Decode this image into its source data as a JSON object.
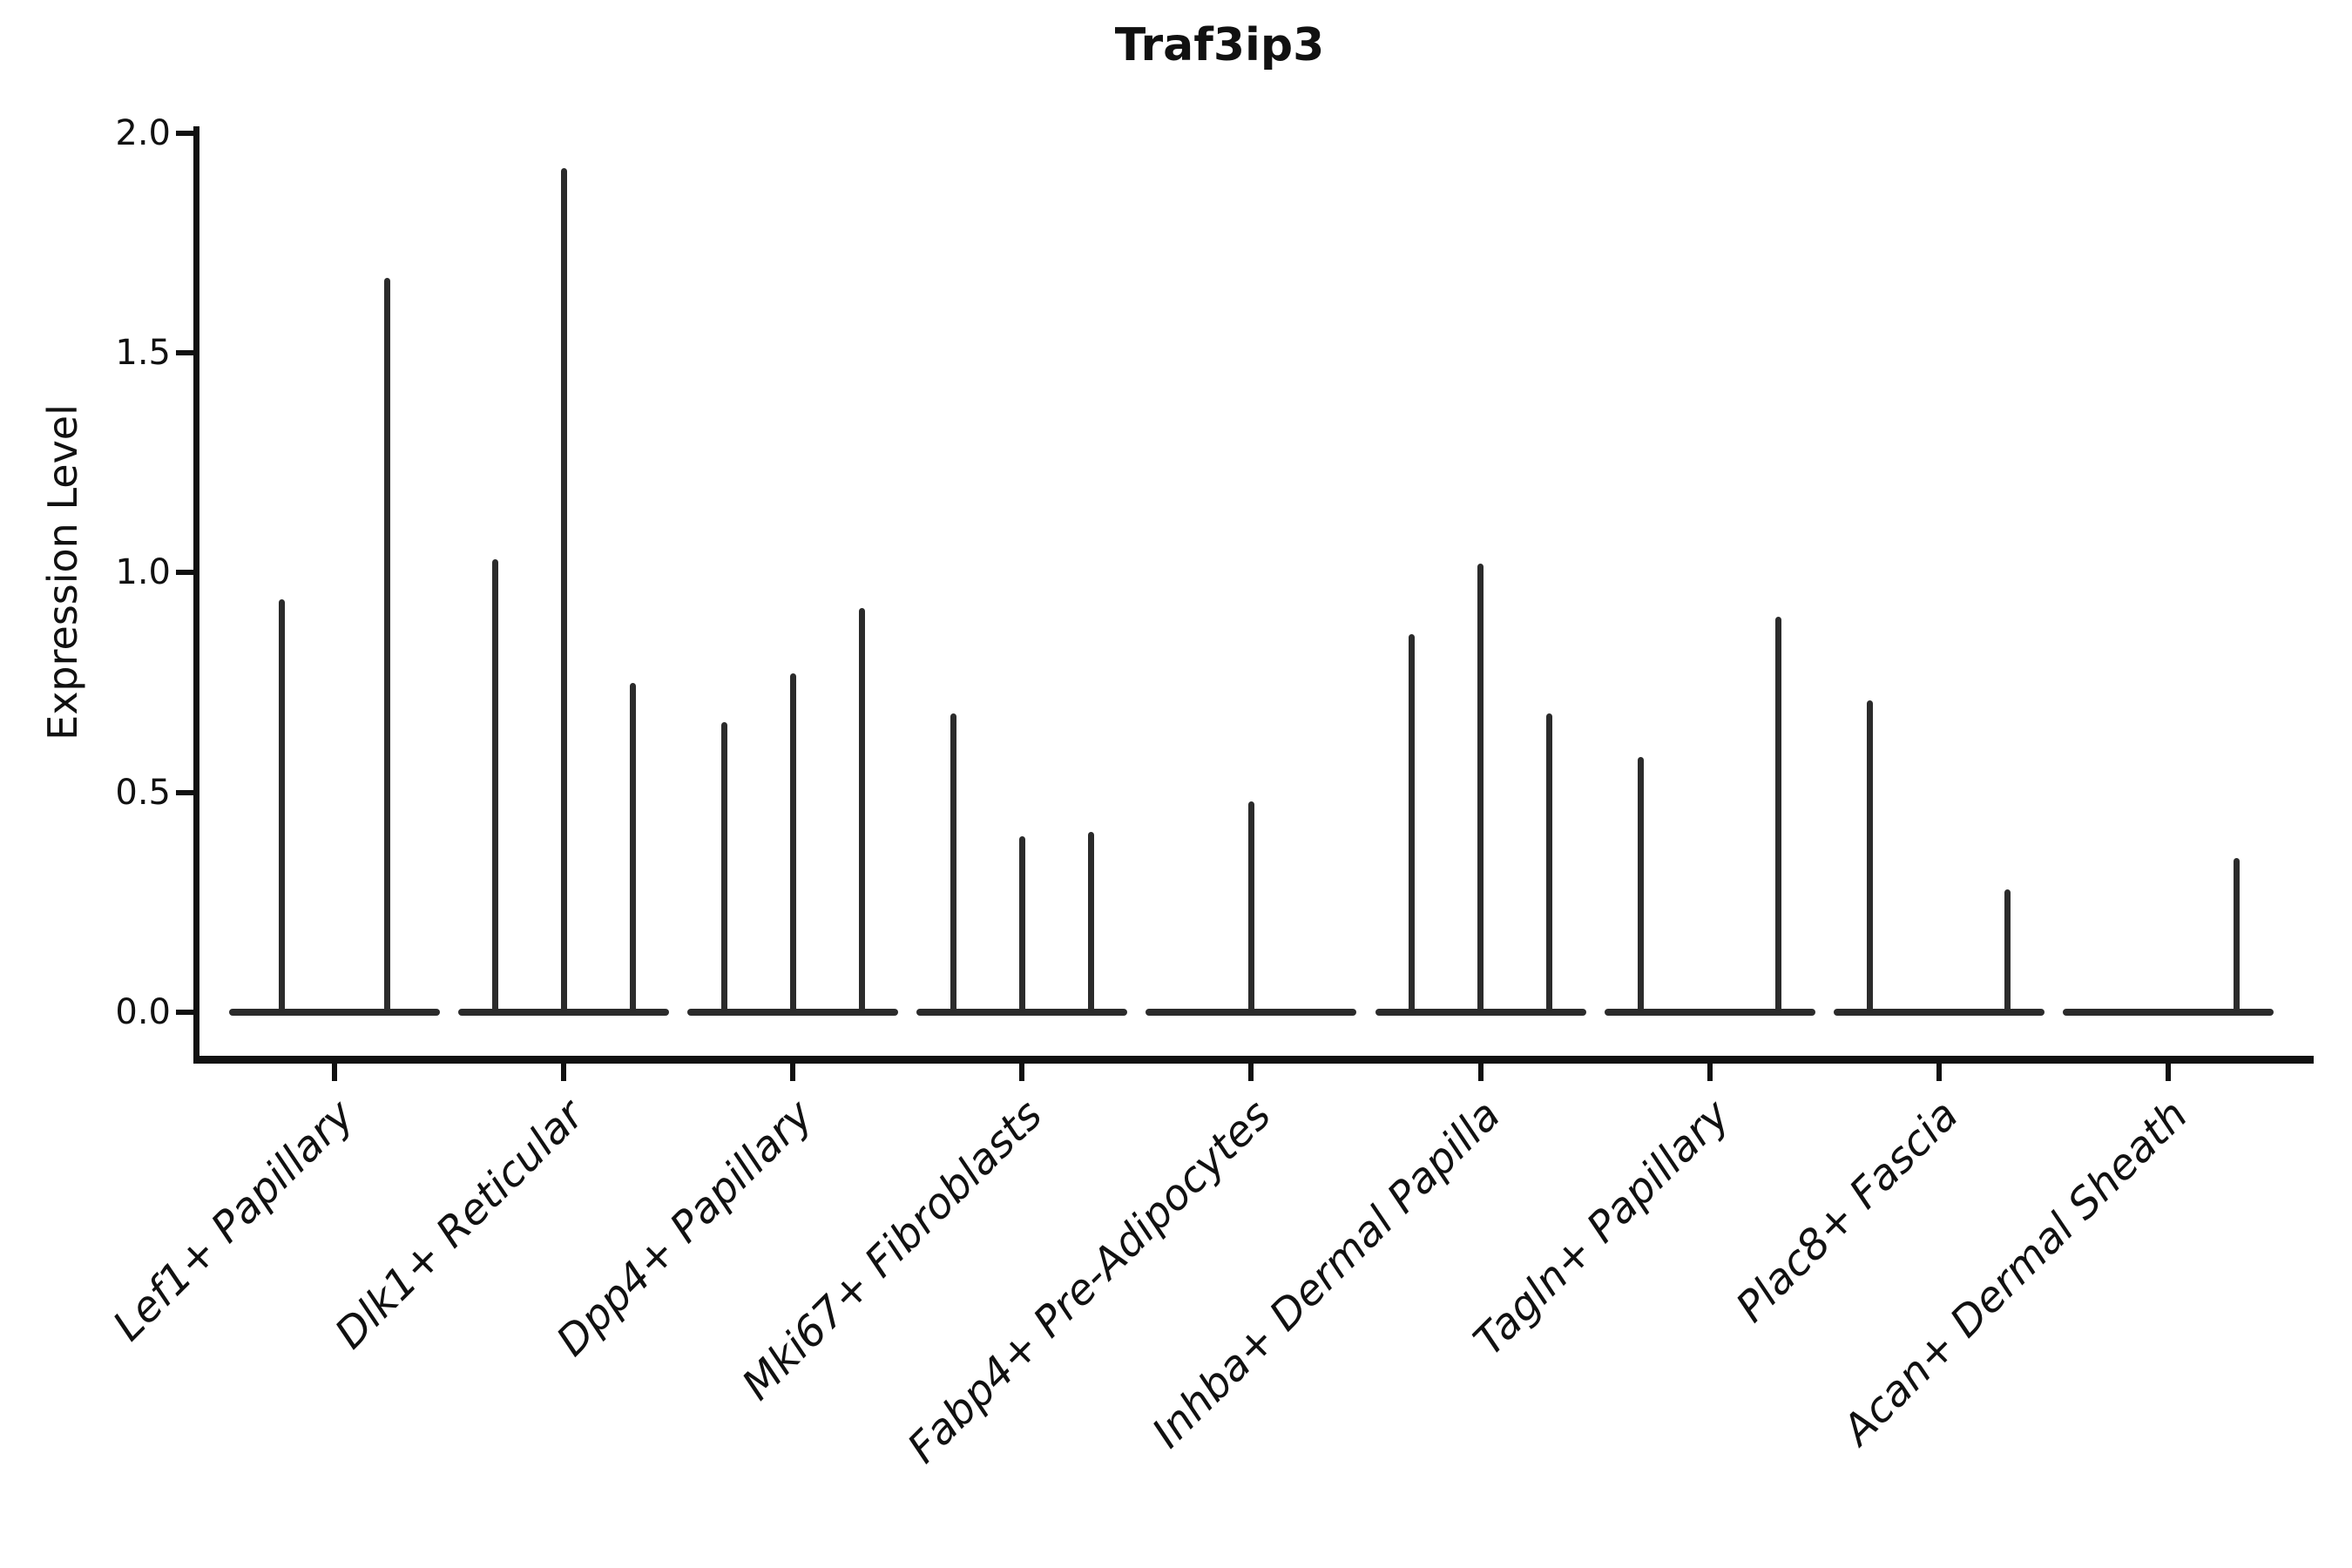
{
  "chart_data": {
    "type": "violin",
    "title": "Traf3ip3",
    "ylabel": "Expression Level",
    "ylim": [
      0.0,
      2.0
    ],
    "yticks": [
      "2.0",
      "1.5",
      "1.0",
      "0.5",
      "0.0"
    ],
    "ytick_values": [
      2.0,
      1.5,
      1.0,
      0.5,
      0.0
    ],
    "grid": false,
    "legend": "none",
    "ink_color": "#111111",
    "violin_color": "#2b2b2b",
    "categories": [
      {
        "label": "Lef1+ Papillary",
        "violins": [
          {
            "pos": -0.23,
            "max": 0.94
          },
          {
            "pos": 0.23,
            "max": 1.67
          }
        ]
      },
      {
        "label": "Dlk1+ Reticular",
        "violins": [
          {
            "pos": -0.3,
            "max": 1.03
          },
          {
            "pos": 0.0,
            "max": 1.92
          },
          {
            "pos": 0.3,
            "max": 0.75
          }
        ]
      },
      {
        "label": "Dpp4+ Papillary",
        "violins": [
          {
            "pos": -0.3,
            "max": 0.66
          },
          {
            "pos": 0.0,
            "max": 0.77
          },
          {
            "pos": 0.3,
            "max": 0.92
          }
        ]
      },
      {
        "label": "Mki67+ Fibroblasts",
        "violins": [
          {
            "pos": -0.3,
            "max": 0.68
          },
          {
            "pos": 0.0,
            "max": 0.4
          },
          {
            "pos": 0.3,
            "max": 0.41
          }
        ]
      },
      {
        "label": "Fabp4+ Pre-Adipocytes",
        "violins": [
          {
            "pos": 0.0,
            "max": 0.48
          }
        ]
      },
      {
        "label": "Inhba+ Dermal Papilla",
        "violins": [
          {
            "pos": -0.3,
            "max": 0.86
          },
          {
            "pos": 0.0,
            "max": 1.02
          },
          {
            "pos": 0.3,
            "max": 0.68
          }
        ]
      },
      {
        "label": "Tagln+ Papillary",
        "violins": [
          {
            "pos": -0.3,
            "max": 0.58
          },
          {
            "pos": 0.3,
            "max": 0.9
          }
        ]
      },
      {
        "label": "Plac8+ Fascia",
        "violins": [
          {
            "pos": -0.3,
            "max": 0.71
          },
          {
            "pos": 0.3,
            "max": 0.28
          }
        ]
      },
      {
        "label": "Acan+ Dermal Sheath",
        "violins": [
          {
            "pos": 0.3,
            "max": 0.35
          }
        ]
      }
    ]
  }
}
